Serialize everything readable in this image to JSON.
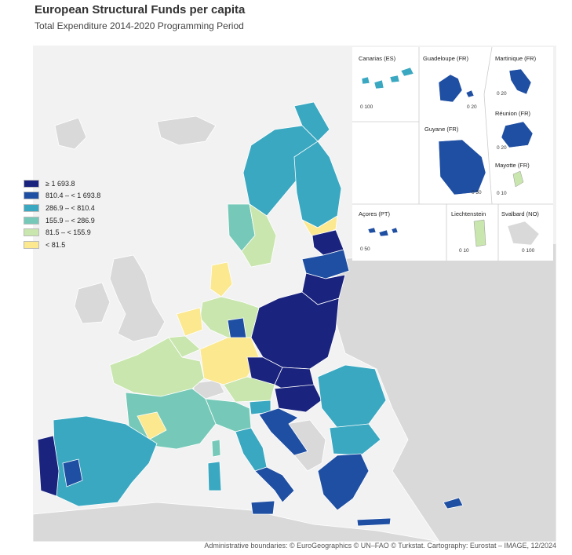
{
  "title": "European Structural Funds per capita",
  "subtitle": "Total Expenditure 2014-2020 Programming Period",
  "colors": {
    "class1": "#1a237e",
    "class2": "#1f4fa3",
    "class3": "#3aa8c1",
    "class4": "#76c9b8",
    "class5": "#c8e6ad",
    "class6": "#fbe88f",
    "nodata": "#d9d9d9",
    "sea": "#f2f2f2",
    "border": "#ffffff"
  },
  "legend": {
    "items": [
      {
        "label": "≥ 1 693.8",
        "color": "#1a237e"
      },
      {
        "label": "810.4 – < 1 693.8",
        "color": "#1f4fa3"
      },
      {
        "label": "286.9 – < 810.4",
        "color": "#3aa8c1"
      },
      {
        "label": "155.9 – < 286.9",
        "color": "#76c9b8"
      },
      {
        "label": "81.5 – < 155.9",
        "color": "#c8e6ad"
      },
      {
        "label": "< 81.5",
        "color": "#fbe88f"
      }
    ]
  },
  "insets": {
    "canarias": {
      "title": "Canarias (ES)",
      "scale": "0 100"
    },
    "guadeloupe": {
      "title": "Guadeloupe (FR)",
      "scale": "0 20"
    },
    "martinique": {
      "title": "Martinique (FR)",
      "scale": "0 20"
    },
    "reunion": {
      "title": "Réunion (FR)",
      "scale": "0 20"
    },
    "guyane": {
      "title": "Guyane (FR)",
      "scale": "0 50"
    },
    "mayotte": {
      "title": "Mayotte (FR)",
      "scale": "0 10"
    },
    "acores": {
      "title": "Açores (PT)",
      "scale": "0 50"
    },
    "liechtenstein": {
      "title": "Liechtenstein",
      "scale": "0 10"
    },
    "svalbard": {
      "title": "Svalbard (NO)",
      "scale": "0 100"
    }
  },
  "credit": "Administrative boundaries: © EuroGeographics © UN–FAO © Turkstat. Cartography: Eurostat – IMAGE, 12/2024"
}
